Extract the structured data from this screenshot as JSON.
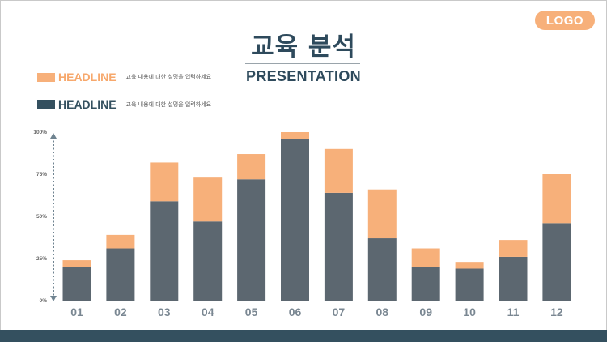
{
  "logo": "LOGO",
  "title": "교육 분석",
  "subtitle": "PRESENTATION",
  "colors": {
    "accent": "#f7b07a",
    "primary": "#5c6770",
    "dark": "#34505f"
  },
  "legend": [
    {
      "head": "HEADLINE",
      "desc": "교육 내용에 대한 설명을 입력하세요",
      "color": "#f7b07a"
    },
    {
      "head": "HEADLINE",
      "desc": "교육 내용에 대한 설명을 입력하세요",
      "color": "#34505f"
    }
  ],
  "chart_data": {
    "type": "bar",
    "stacked": true,
    "categories": [
      "01",
      "02",
      "03",
      "04",
      "05",
      "06",
      "07",
      "08",
      "09",
      "10",
      "11",
      "12"
    ],
    "y_ticks": [
      "100%",
      "75%",
      "50%",
      "25%",
      "0%"
    ],
    "ylim": [
      0,
      100
    ],
    "series": [
      {
        "name": "HEADLINE",
        "color": "#5c6770",
        "values": [
          20,
          31,
          59,
          47,
          72,
          96,
          64,
          37,
          20,
          19,
          26,
          46
        ]
      },
      {
        "name": "HEADLINE",
        "color": "#f7b07a",
        "values": [
          4,
          8,
          23,
          26,
          15,
          4,
          26,
          29,
          11,
          4,
          10,
          29
        ]
      }
    ]
  }
}
